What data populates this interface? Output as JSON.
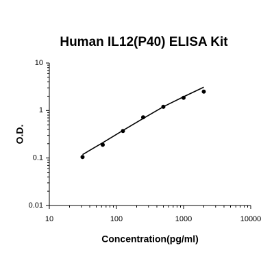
{
  "chart_data": {
    "type": "scatter",
    "title": "Human IL12(P40) ELISA Kit",
    "x_label": "Concentration(pg/ml)",
    "y_label": "O.D.",
    "xscale": "log",
    "yscale": "log",
    "xlim": [
      10,
      10000
    ],
    "xticks": [
      10,
      100,
      1000,
      10000
    ],
    "ylim": [
      0.01,
      10
    ],
    "yticks": [
      0.01,
      0.1,
      1,
      10
    ],
    "series": [
      {
        "style": "points",
        "color": "#000000",
        "x": [
          31.25,
          62.5,
          125,
          250,
          500,
          1000,
          2000
        ],
        "values": [
          0.105,
          0.19,
          0.37,
          0.72,
          1.2,
          1.85,
          2.5
        ]
      },
      {
        "style": "line",
        "color": "#000000",
        "x": [
          31.25,
          62.5,
          125,
          250,
          500,
          1000,
          2000
        ],
        "values": [
          0.118,
          0.21,
          0.38,
          0.68,
          1.2,
          1.95,
          3.1
        ]
      }
    ]
  }
}
